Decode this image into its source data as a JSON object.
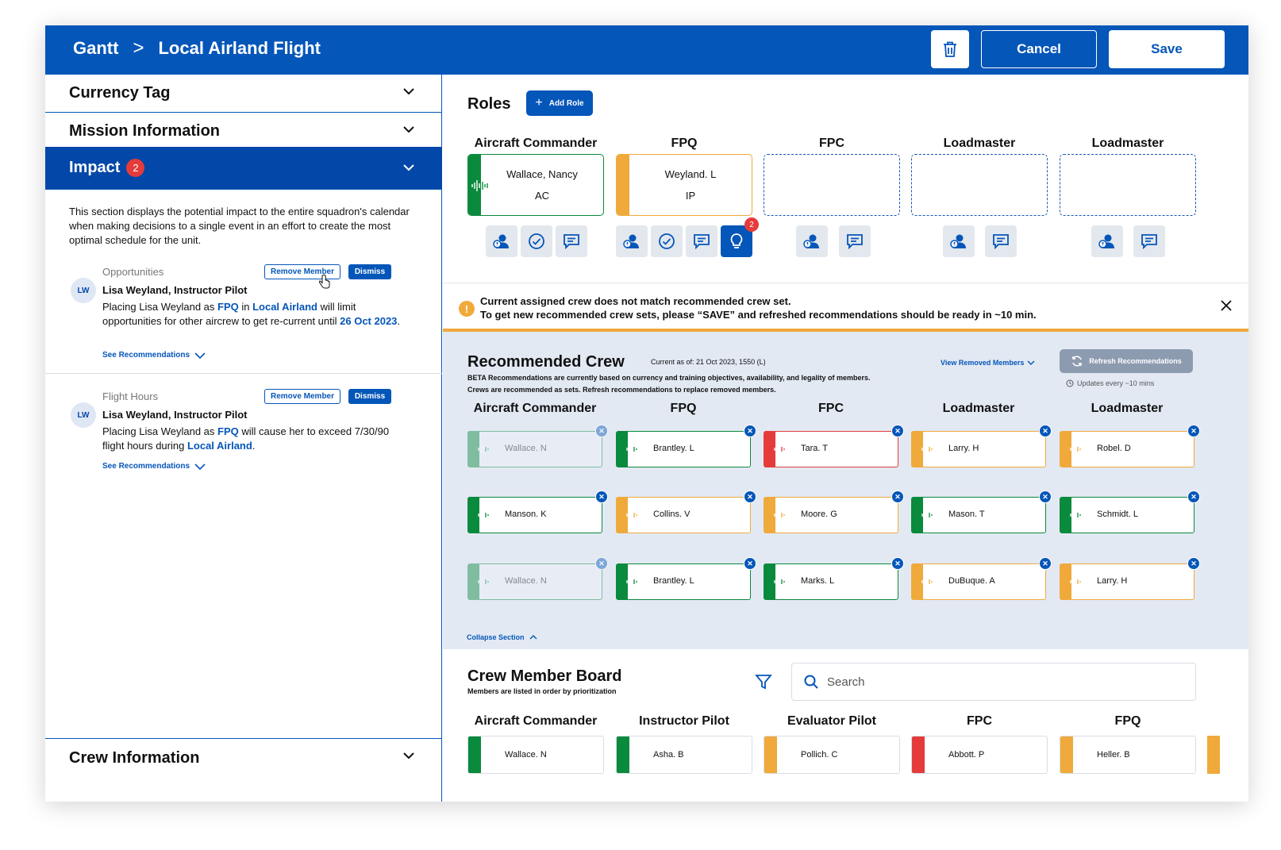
{
  "header": {
    "breadcrumb_root": "Gantt",
    "breadcrumb_sep": ">",
    "title": "Local Airland Flight",
    "cancel_label": "Cancel",
    "save_label": "Save"
  },
  "left": {
    "currency_tag": "Currency Tag",
    "mission_info": "Mission Information",
    "impact": "Impact",
    "impact_count": "2",
    "impact_description": "This section displays the potential impact to the entire squadron's calendar when making decisions to a single event in an effort to create the most optimal schedule for the unit.",
    "crew_info": "Crew Information",
    "cards": [
      {
        "category": "Opportunities",
        "initials": "LW",
        "name": "Lisa Weyland, Instructor Pilot",
        "msg_a": "Placing Lisa Weyland as ",
        "msg_b": "FPQ",
        "msg_c": " in ",
        "msg_d": "Local Airland",
        "msg_e": " will limit opportunities for other aircrew to get re-current until ",
        "msg_f": "26 Oct 2023",
        "msg_g": ".",
        "remove": "Remove Member",
        "dismiss": "Dismiss",
        "see": "See Recommendations"
      },
      {
        "category": "Flight Hours",
        "initials": "LW",
        "name": "Lisa Weyland, Instructor Pilot",
        "msg_a": "Placing Lisa Weyland as ",
        "msg_b": "FPQ",
        "msg_c": " will cause her to exceed 7/30/90 flight hours during ",
        "msg_d": "Local Airland",
        "msg_e": ".",
        "remove": "Remove Member",
        "dismiss": "Dismiss",
        "see": "See Recommendations"
      }
    ]
  },
  "roles": {
    "title": "Roles",
    "add_label": "Add Role",
    "columns": [
      {
        "label": "Aircraft Commander",
        "name": "Wallace, Nancy",
        "code": "AC",
        "color": "#0a8a3c"
      },
      {
        "label": "FPQ",
        "name": "Weyland. L",
        "code": "IP",
        "color": "#f0a93b",
        "notif": "2"
      },
      {
        "label": "FPC"
      },
      {
        "label": "Loadmaster"
      },
      {
        "label": "Loadmaster"
      }
    ]
  },
  "alert": {
    "line1": "Current assigned crew does not match recommended crew set.",
    "line2": "To get new recommended crew sets, please “SAVE” and refreshed recommendations should be ready in ~10 min."
  },
  "recommended": {
    "title": "Recommended Crew",
    "as_of": "Current as of: 21 Oct 2023, 1550 (L)",
    "beta1": "BETA Recommendations are currently based on currency and training objectives, availability, and legality of members.",
    "beta2": "Crews are recommended as sets. Refresh recommendations to replace removed members.",
    "view_removed": "View Removed Members",
    "refresh_label": "Refresh Recommendations",
    "updates": "Updates every ~10 mins",
    "collapse": "Collapse Section",
    "columns": [
      "Aircraft Commander",
      "FPQ",
      "FPC",
      "Loadmaster",
      "Loadmaster"
    ],
    "rows": [
      [
        {
          "n": "Wallace. N",
          "c": "#0a8a3c",
          "dim": true
        },
        {
          "n": "Brantley. L",
          "c": "#0a8a3c"
        },
        {
          "n": "Tara. T",
          "c": "#e53b3b"
        },
        {
          "n": "Larry. H",
          "c": "#f0a93b"
        },
        {
          "n": "Robel. D",
          "c": "#f0a93b"
        }
      ],
      [
        {
          "n": "Manson. K",
          "c": "#0a8a3c"
        },
        {
          "n": "Collins. V",
          "c": "#f0a93b"
        },
        {
          "n": "Moore. G",
          "c": "#f0a93b"
        },
        {
          "n": "Mason. T",
          "c": "#0a8a3c"
        },
        {
          "n": "Schmidt. L",
          "c": "#0a8a3c"
        }
      ],
      [
        {
          "n": "Wallace. N",
          "c": "#0a8a3c",
          "dim": true
        },
        {
          "n": "Brantley. L",
          "c": "#0a8a3c"
        },
        {
          "n": "Marks. L",
          "c": "#0a8a3c"
        },
        {
          "n": "DuBuque. A",
          "c": "#f0a93b"
        },
        {
          "n": "Larry. H",
          "c": "#f0a93b"
        }
      ]
    ]
  },
  "board": {
    "title": "Crew Member Board",
    "subtitle": "Members are listed in order by prioritization",
    "search_placeholder": "Search",
    "columns": [
      {
        "label": "Aircraft Commander",
        "name": "Wallace. N",
        "color": "#0a8a3c"
      },
      {
        "label": "Instructor Pilot",
        "name": "Asha. B",
        "color": "#0a8a3c"
      },
      {
        "label": "Evaluator Pilot",
        "name": "Pollich. C",
        "color": "#f0a93b"
      },
      {
        "label": "FPC",
        "name": "Abbott. P",
        "color": "#e53b3b"
      },
      {
        "label": "FPQ",
        "name": "Heller. B",
        "color": "#f0a93b"
      }
    ]
  }
}
